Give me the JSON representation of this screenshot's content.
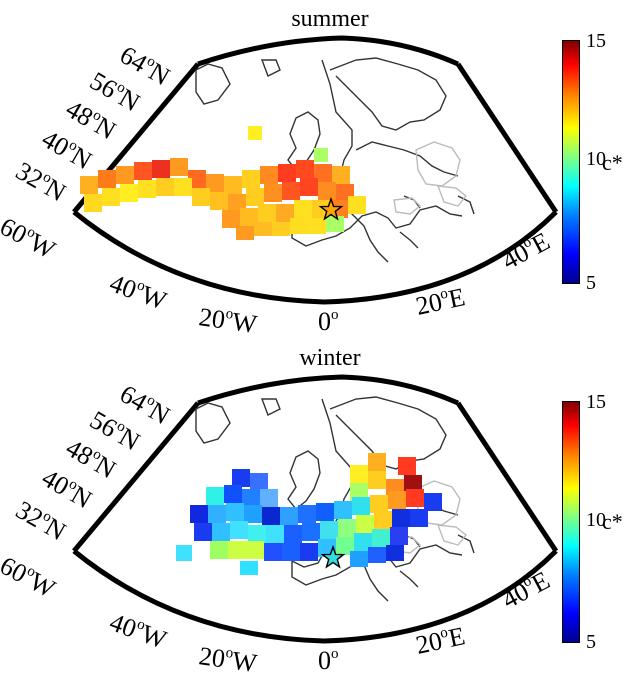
{
  "panels": [
    {
      "id": "summer",
      "title": "summer",
      "colorbar": {
        "ticks": [
          "15",
          "10",
          "5"
        ],
        "label": "c*",
        "range": [
          5,
          15
        ]
      },
      "lat_labels": [
        "64",
        "56",
        "48",
        "40",
        "32"
      ],
      "lon_labels_left": [
        "60",
        "40",
        "20"
      ],
      "lon_labels_bottom": [
        "0",
        "20",
        "40"
      ],
      "hemis": {
        "n": "N",
        "w": "W",
        "e": "E"
      },
      "marker": "star"
    },
    {
      "id": "winter",
      "title": "winter",
      "colorbar": {
        "ticks": [
          "15",
          "10",
          "5"
        ],
        "label": "c*",
        "range": [
          5,
          15
        ]
      },
      "lat_labels": [
        "64",
        "56",
        "48",
        "40",
        "32"
      ],
      "lon_labels_left": [
        "60",
        "40",
        "20"
      ],
      "lon_labels_bottom": [
        "0",
        "20",
        "40"
      ],
      "hemis": {
        "n": "N",
        "w": "W",
        "e": "E"
      },
      "marker": "star"
    }
  ],
  "colors": {
    "frame": "#000000",
    "coast": "#333333",
    "star_summer_fill": "#ffa500",
    "star_winter_fill": "#33dddd"
  }
}
